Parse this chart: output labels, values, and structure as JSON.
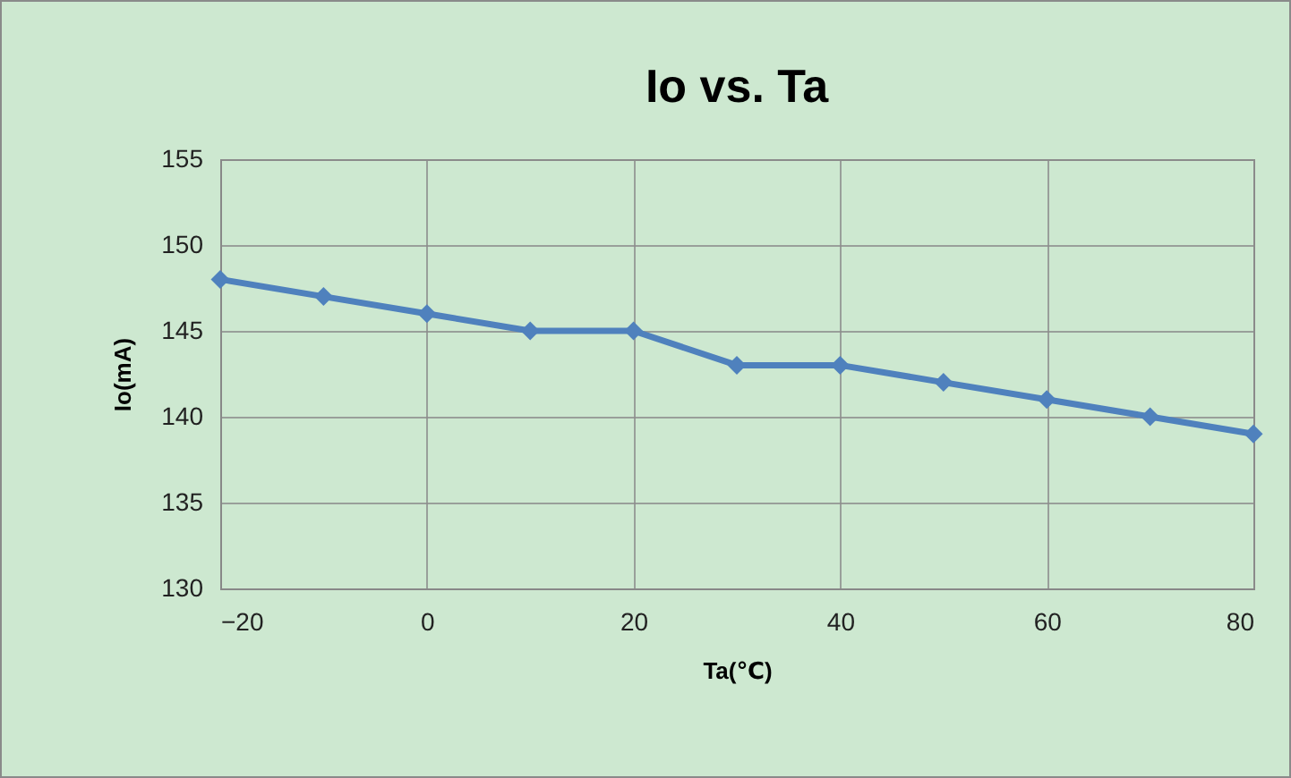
{
  "chart_data": {
    "type": "line",
    "title": "Io vs. Ta",
    "xlabel": "Ta(℃)",
    "ylabel": "Io(mA)",
    "x": [
      -20,
      -10,
      0,
      10,
      20,
      30,
      40,
      50,
      60,
      70,
      80
    ],
    "series": [
      {
        "color": "#4f81bd",
        "values": [
          148,
          147,
          146,
          145,
          145,
          143,
          143,
          142,
          141,
          140,
          139
        ]
      }
    ],
    "xlim": [
      -20,
      80
    ],
    "xticks": [
      -20,
      0,
      20,
      40,
      60,
      80
    ],
    "ylim": [
      130,
      155
    ],
    "yticks": [
      130,
      135,
      140,
      145,
      150,
      155
    ],
    "grid": true,
    "marker": "diamond",
    "line_style": "solid"
  }
}
